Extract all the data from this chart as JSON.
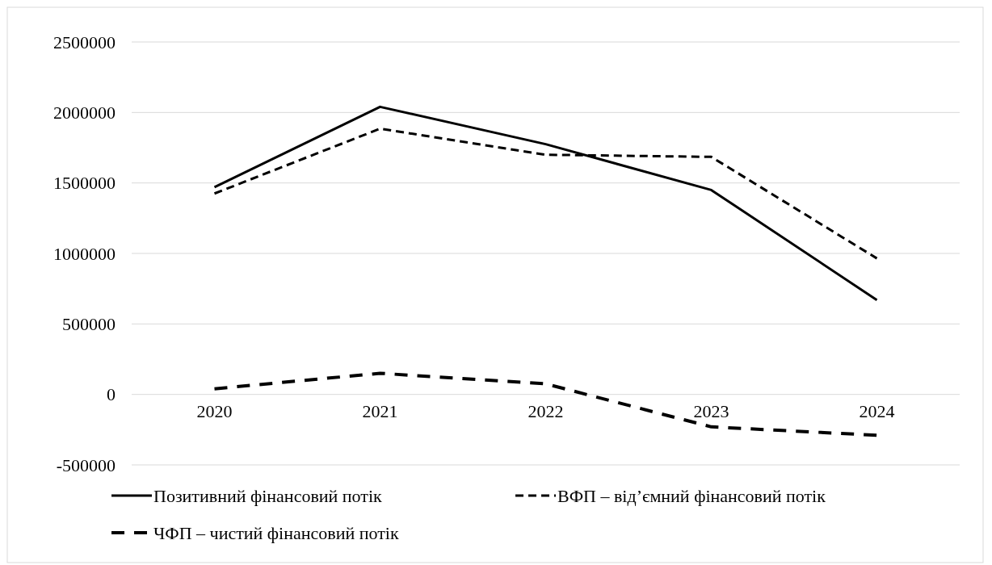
{
  "chart_data": {
    "type": "line",
    "categories": [
      "2020",
      "2021",
      "2022",
      "2023",
      "2024"
    ],
    "series": [
      {
        "name": "Позитивний фінансовий потік",
        "color": "#000000",
        "line_style": "solid",
        "values": [
          1470000,
          2040000,
          1775000,
          1450000,
          670000
        ]
      },
      {
        "name": "ВФП – від’ємний фінансовий потік",
        "color": "#000000",
        "line_style": "dashed",
        "values": [
          1425000,
          1885000,
          1700000,
          1685000,
          965000
        ]
      },
      {
        "name": "ЧФП – чистий фінансовий потік",
        "color": "#000000",
        "line_style": "dashed",
        "values": [
          40000,
          150000,
          75000,
          -230000,
          -290000
        ]
      }
    ],
    "ylim": [
      -500000,
      2500000
    ],
    "yticks": [
      -500000,
      0,
      500000,
      1000000,
      1500000,
      2000000,
      2500000
    ],
    "grid": "y",
    "legend": "bottom"
  }
}
